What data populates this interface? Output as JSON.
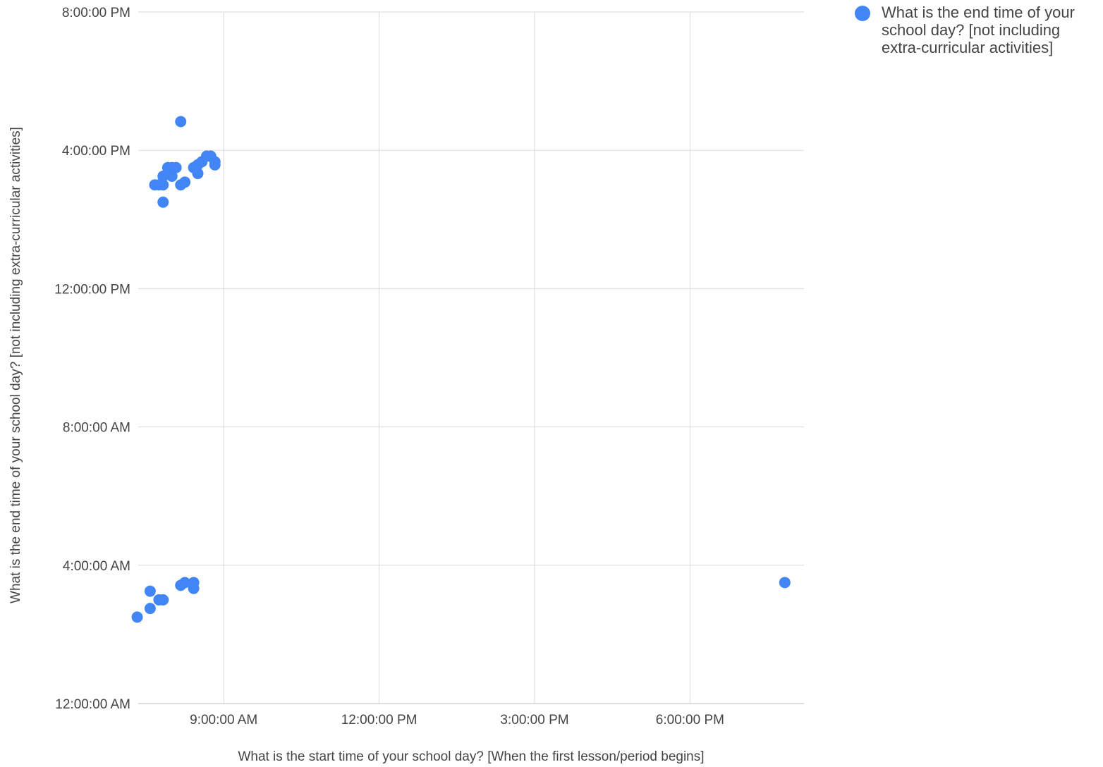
{
  "chart_data": {
    "type": "scatter",
    "xlabel": "What is the start time of your school day? [When the first lesson/period begins]",
    "ylabel": "What is the end time of your school day? [not including extra-curricular activities]",
    "x_unit": "hours after midnight",
    "y_unit": "hours after midnight",
    "xlim": [
      7.35,
      20.2
    ],
    "ylim": [
      0,
      20
    ],
    "x_ticks": [
      {
        "value": 9,
        "label": "9:00:00 AM"
      },
      {
        "value": 12,
        "label": "12:00:00 PM"
      },
      {
        "value": 15,
        "label": "3:00:00 PM"
      },
      {
        "value": 18,
        "label": "6:00:00 PM"
      }
    ],
    "y_ticks": [
      {
        "value": 0,
        "label": "12:00:00 AM"
      },
      {
        "value": 4,
        "label": "4:00:00 AM"
      },
      {
        "value": 8,
        "label": "8:00:00 AM"
      },
      {
        "value": 12,
        "label": "12:00:00 PM"
      },
      {
        "value": 16,
        "label": "4:00:00 PM"
      },
      {
        "value": 20,
        "label": "8:00:00 PM"
      }
    ],
    "grid": true,
    "legend_position": "right",
    "series": [
      {
        "name": "What is the end time of your school day? [not including extra-curricular activities]",
        "color": "#4285f4",
        "points": [
          {
            "x": 8.17,
            "y": 16.83
          },
          {
            "x": 7.83,
            "y": 15.0
          },
          {
            "x": 7.83,
            "y": 15.25
          },
          {
            "x": 8.0,
            "y": 15.25
          },
          {
            "x": 7.92,
            "y": 15.5
          },
          {
            "x": 8.0,
            "y": 15.5
          },
          {
            "x": 8.08,
            "y": 15.5
          },
          {
            "x": 7.67,
            "y": 15.0
          },
          {
            "x": 7.75,
            "y": 15.0
          },
          {
            "x": 7.83,
            "y": 14.5
          },
          {
            "x": 8.17,
            "y": 15.0
          },
          {
            "x": 8.25,
            "y": 15.08
          },
          {
            "x": 8.42,
            "y": 15.5
          },
          {
            "x": 8.5,
            "y": 15.33
          },
          {
            "x": 8.5,
            "y": 15.58
          },
          {
            "x": 8.58,
            "y": 15.67
          },
          {
            "x": 8.67,
            "y": 15.83
          },
          {
            "x": 8.75,
            "y": 15.83
          },
          {
            "x": 8.83,
            "y": 15.67
          },
          {
            "x": 8.83,
            "y": 15.58
          },
          {
            "x": 7.58,
            "y": 3.25
          },
          {
            "x": 7.33,
            "y": 2.5
          },
          {
            "x": 7.58,
            "y": 2.75
          },
          {
            "x": 7.75,
            "y": 3.0
          },
          {
            "x": 7.83,
            "y": 3.0
          },
          {
            "x": 8.17,
            "y": 3.42
          },
          {
            "x": 8.25,
            "y": 3.5
          },
          {
            "x": 8.42,
            "y": 3.5
          },
          {
            "x": 8.42,
            "y": 3.33
          },
          {
            "x": 19.83,
            "y": 3.5
          }
        ]
      }
    ]
  }
}
